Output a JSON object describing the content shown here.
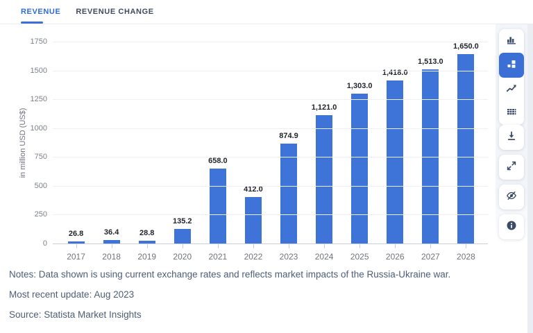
{
  "tabs": {
    "items": [
      {
        "label": "REVENUE"
      },
      {
        "label": "REVENUE CHANGE"
      }
    ],
    "active_index": 0
  },
  "chart_data": {
    "type": "bar",
    "categories": [
      "2017",
      "2018",
      "2019",
      "2020",
      "2021",
      "2022",
      "2023",
      "2024",
      "2025",
      "2026",
      "2027",
      "2028"
    ],
    "values": [
      26.8,
      36.4,
      28.8,
      135.2,
      658.0,
      412.0,
      874.9,
      1121.0,
      1303.0,
      1418.0,
      1513.0,
      1650.0
    ],
    "value_labels": [
      "26.8",
      "36.4",
      "28.8",
      "135.2",
      "658.0",
      "412.0",
      "874.9",
      "1,121.0",
      "1,303.0",
      "1,418.0",
      "1,513.0",
      "1,650.0"
    ],
    "title": "",
    "xlabel": "",
    "ylabel": "in million USD (US$)",
    "ylim": [
      0,
      1750
    ],
    "yticks": [
      0,
      250,
      500,
      750,
      1000,
      1250,
      1500,
      1750
    ],
    "grid": true,
    "legend": false,
    "bar_color": "#3E73D8"
  },
  "toolbar": {
    "chart_type_icons": [
      {
        "name": "column-chart",
        "selected": false
      },
      {
        "name": "block-chart",
        "selected": true
      },
      {
        "name": "trend-line",
        "selected": false
      },
      {
        "name": "data-table",
        "selected": false
      }
    ],
    "action_icons": [
      "download",
      "fullscreen",
      "hide-labels",
      "info"
    ]
  },
  "footer": {
    "notes": "Notes: Data shown is using current exchange rates and reflects market impacts of the Russia-Ukraine war.",
    "update": "Most recent update: Aug 2023",
    "source": "Source: Statista Market Insights"
  },
  "colors": {
    "accent": "#2E6BD8",
    "bar": "#3E73D8",
    "selected_icon_bg": "#3B6FD6",
    "icon": "#3E4D66"
  }
}
